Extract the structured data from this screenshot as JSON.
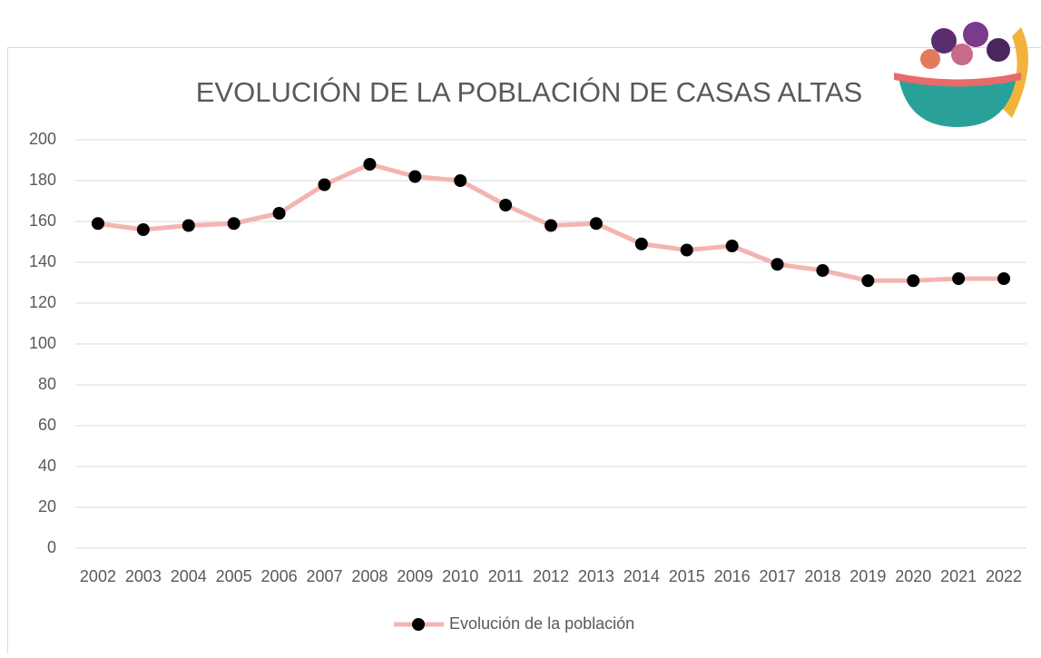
{
  "chart_data": {
    "type": "line",
    "title": "EVOLUCIÓN DE LA POBLACIÓN DE CASAS ALTAS",
    "categories": [
      "2002",
      "2003",
      "2004",
      "2005",
      "2006",
      "2007",
      "2008",
      "2009",
      "2010",
      "2011",
      "2012",
      "2013",
      "2014",
      "2015",
      "2016",
      "2017",
      "2018",
      "2019",
      "2020",
      "2021",
      "2022"
    ],
    "series": [
      {
        "name": "Evolución de la población",
        "color": "#f4b4b2",
        "marker_color": "#000000",
        "values": [
          159,
          156,
          158,
          159,
          164,
          178,
          188,
          182,
          180,
          168,
          158,
          159,
          149,
          146,
          148,
          139,
          136,
          131,
          131,
          132,
          132
        ]
      }
    ],
    "ylim": [
      0,
      200
    ],
    "yticks": [
      0,
      20,
      40,
      60,
      80,
      100,
      120,
      140,
      160,
      180,
      200
    ],
    "grid": true,
    "legend": "bottom"
  }
}
